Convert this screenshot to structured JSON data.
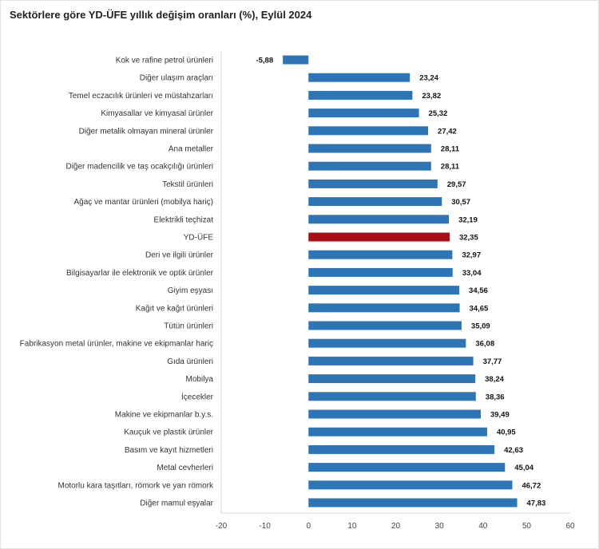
{
  "chart_data": {
    "type": "bar",
    "orientation": "horizontal",
    "title": "Sektörlere göre YD-ÜFE yıllık değişim oranları (%), Eylül 2024",
    "categories": [
      "Kok ve rafine petrol ürünleri",
      "Diğer ulaşım araçları",
      "Temel eczacılık ürünleri ve müstahzarları",
      "Kimyasallar ve kimyasal ürünler",
      "Diğer metalik olmayan mineral ürünler",
      "Ana metaller",
      "Diğer madencilik ve taş ocakçılığı ürünleri",
      "Tekstil ürünleri",
      "Ağaç ve mantar ürünleri (mobilya hariç)",
      "Elektrikli teçhizat",
      "YD-ÜFE",
      "Deri ve ilgili ürünler",
      "Bilgisayarlar ile elektronik ve optik ürünler",
      "Giyim eşyası",
      "Kağıt ve kağıt ürünleri",
      "Tütün ürünleri",
      "Fabrikasyon metal ürünler, makine ve ekipmanlar hariç",
      "Gıda ürünleri",
      "Mobilya",
      "İçecekler",
      "Makine ve ekipmanlar b.y.s.",
      "Kauçuk ve plastik ürünler",
      "Basım ve kayıt hizmetleri",
      "Metal cevherleri",
      "Motorlu kara taşıtları, römork ve yarı römork",
      "Diğer mamul eşyalar"
    ],
    "values": [
      -5.88,
      23.24,
      23.82,
      25.32,
      27.42,
      28.11,
      28.11,
      29.57,
      30.57,
      32.19,
      32.35,
      32.97,
      33.04,
      34.56,
      34.65,
      35.09,
      36.08,
      37.77,
      38.24,
      38.36,
      39.49,
      40.95,
      42.63,
      45.04,
      46.72,
      47.83
    ],
    "value_labels": [
      "-5,88",
      "23,24",
      "23,82",
      "25,32",
      "27,42",
      "28,11",
      "28,11",
      "29,57",
      "30,57",
      "32,19",
      "32,35",
      "32,97",
      "33,04",
      "34,56",
      "34,65",
      "35,09",
      "36,08",
      "37,77",
      "38,24",
      "38,36",
      "39,49",
      "40,95",
      "42,63",
      "45,04",
      "46,72",
      "47,83"
    ],
    "highlight_category": "YD-ÜFE",
    "xlim": [
      -20,
      60
    ],
    "xticks": [
      -20,
      -10,
      0,
      10,
      20,
      30,
      40,
      50,
      60
    ],
    "xlabel": "",
    "ylabel": "",
    "grid": false,
    "colors": {
      "bar": "#2e75b6",
      "highlight": "#a50f15"
    }
  }
}
